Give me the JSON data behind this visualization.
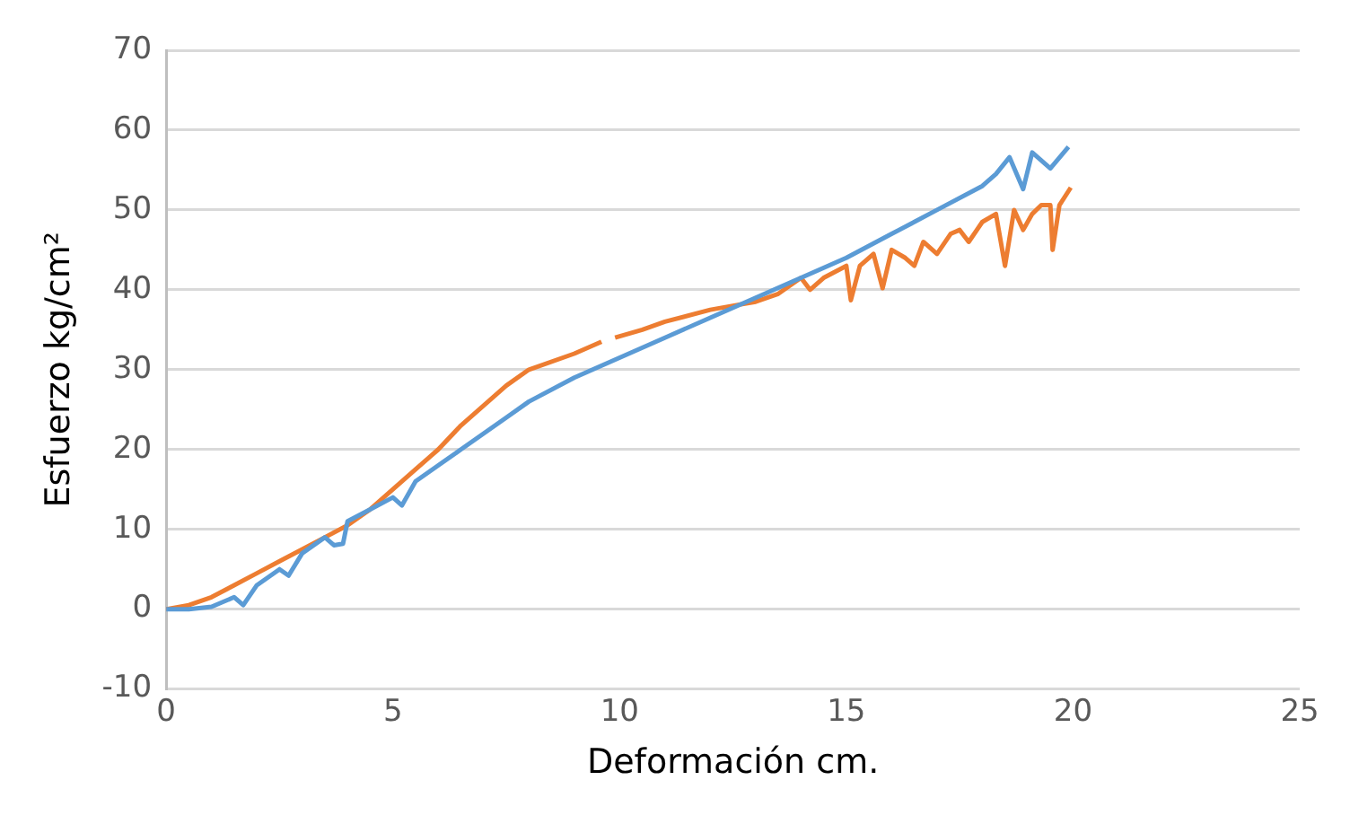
{
  "chart_data": {
    "type": "line",
    "xlabel": "Deformación cm.",
    "ylabel": "Esfuerzo kg/cm²",
    "xlim": [
      0,
      25
    ],
    "xticks": [
      0,
      5,
      10,
      15,
      20,
      25
    ],
    "ylim": [
      -10,
      70
    ],
    "yticks": [
      -10,
      0,
      10,
      20,
      30,
      40,
      50,
      60,
      70
    ],
    "grid": "y",
    "legend": false,
    "marker": "none",
    "line_style": "solid",
    "series": [
      {
        "color": "#5b9bd5",
        "x": [
          0,
          0.5,
          1,
          1.5,
          1.7,
          2,
          2.5,
          2.7,
          3,
          3.5,
          3.7,
          3.9,
          4,
          4.5,
          5,
          5.2,
          5.5,
          6,
          6.5,
          7,
          7.5,
          8,
          9,
          10,
          11,
          12,
          13,
          14,
          15,
          16,
          17,
          18,
          18.3,
          18.6,
          18.9,
          19.1,
          19.5,
          19.9
        ],
        "values": [
          0,
          0,
          0.3,
          1.5,
          0.5,
          3,
          5,
          4.2,
          7,
          9,
          8,
          8.2,
          11,
          12.5,
          14,
          13,
          16,
          18,
          20,
          22,
          24,
          26,
          29,
          31.5,
          34,
          36.5,
          39,
          41.5,
          44,
          47,
          50,
          53,
          54.5,
          56.6,
          52.6,
          57.2,
          55.2,
          57.9
        ]
      },
      {
        "color": "#ed7d31",
        "x": [
          0,
          0.5,
          1,
          1.5,
          2,
          2.5,
          3,
          3.5,
          4,
          4.5,
          5,
          5.5,
          6,
          6.5,
          7,
          7.5,
          8,
          9,
          9.6,
          9.75,
          9.9,
          10.5,
          11,
          12,
          12.5,
          13,
          13.5,
          14,
          14.2,
          14.5,
          15,
          15.1,
          15.3,
          15.6,
          15.8,
          16,
          16.3,
          16.5,
          16.7,
          17,
          17.3,
          17.5,
          17.7,
          18,
          18.3,
          18.5,
          18.7,
          18.9,
          19.1,
          19.3,
          19.5,
          19.55,
          19.7,
          19.95
        ],
        "values": [
          0,
          0.5,
          1.5,
          3,
          4.5,
          6,
          7.5,
          9,
          10.5,
          12.5,
          15,
          17.5,
          20,
          23,
          25.5,
          28,
          30,
          32,
          33.5,
          null,
          34,
          35,
          36,
          37.5,
          38,
          38.5,
          39.5,
          41.5,
          40,
          41.5,
          43,
          38.7,
          43,
          44.5,
          40.2,
          45,
          44,
          43,
          46,
          44.5,
          47,
          47.5,
          46,
          48.5,
          49.5,
          43,
          50,
          47.5,
          49.5,
          50.6,
          50.6,
          45,
          50.6,
          52.8
        ]
      }
    ]
  }
}
